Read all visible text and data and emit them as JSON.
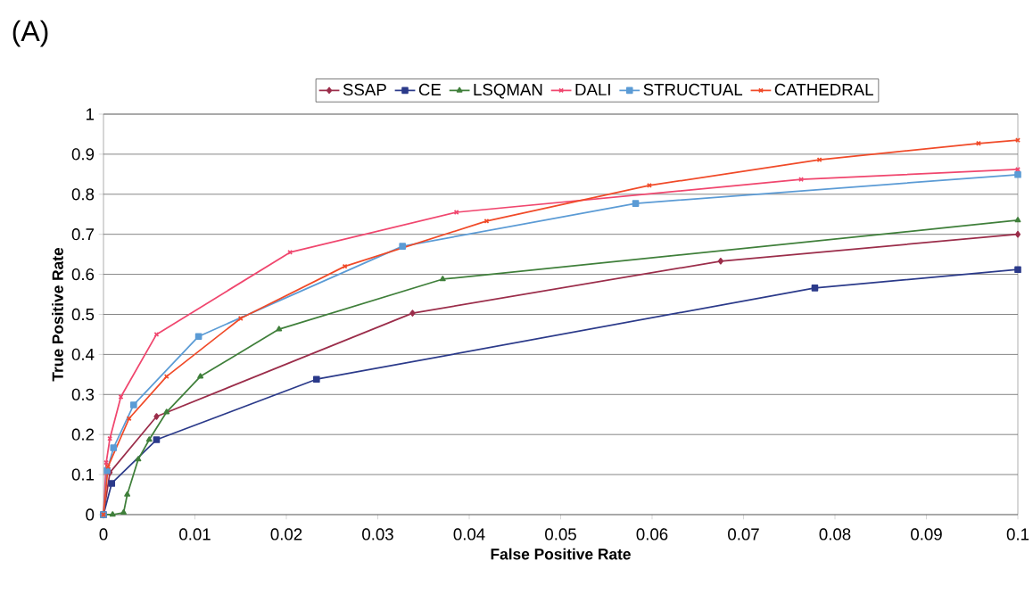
{
  "chart_data": {
    "type": "line",
    "xlabel": "False Positive Rate",
    "ylabel": "True Positive Rate",
    "annotations": [
      "(A)"
    ],
    "xlim": [
      0,
      0.1
    ],
    "xticks": [
      0,
      0.01,
      0.02,
      0.03,
      0.04,
      0.05,
      0.06,
      0.07,
      0.08,
      0.09,
      0.1
    ],
    "ylim": [
      0,
      1
    ],
    "yticks": [
      0,
      0.1,
      0.2,
      0.3,
      0.4,
      0.5,
      0.6,
      0.7,
      0.8,
      0.9,
      1
    ],
    "grid": "y",
    "legend": "top",
    "line_style": "solid",
    "series": [
      {
        "name": "SSAP",
        "color": "#9b2d4a",
        "marker": "diamond",
        "x": [
          0,
          0.0007,
          0.0058,
          0.0338,
          0.0675,
          0.1
        ],
        "values": [
          0,
          0.105,
          0.245,
          0.503,
          0.633,
          0.7
        ]
      },
      {
        "name": "CE",
        "color": "#2b3a8a",
        "marker": "square",
        "x": [
          0,
          0.0009,
          0.0058,
          0.0233,
          0.0778,
          0.1
        ],
        "values": [
          0,
          0.078,
          0.187,
          0.338,
          0.566,
          0.612
        ]
      },
      {
        "name": "LSQMAN",
        "color": "#3f7f3a",
        "marker": "triangle",
        "x": [
          0,
          0.001,
          0.0022,
          0.0026,
          0.0038,
          0.005,
          0.0069,
          0.0106,
          0.0192,
          0.0371,
          0.1
        ],
        "values": [
          0,
          0,
          0.005,
          0.05,
          0.138,
          0.187,
          0.256,
          0.345,
          0.463,
          0.588,
          0.735
        ]
      },
      {
        "name": "DALI",
        "color": "#f0466e",
        "marker": "cross",
        "x": [
          0,
          0.0003,
          0.0007,
          0.0019,
          0.0058,
          0.0204,
          0.0386,
          0.0763,
          0.1
        ],
        "values": [
          0,
          0.13,
          0.19,
          0.294,
          0.45,
          0.655,
          0.755,
          0.837,
          0.862
        ]
      },
      {
        "name": "STRUCTUAL",
        "color": "#5b9bd5",
        "marker": "square",
        "x": [
          0,
          0.0004,
          0.0011,
          0.0033,
          0.0104,
          0.0327,
          0.0582,
          0.1
        ],
        "values": [
          0,
          0.11,
          0.167,
          0.274,
          0.445,
          0.67,
          0.777,
          0.849
        ]
      },
      {
        "name": "CATHEDRAL",
        "color": "#f04a28",
        "marker": "cross",
        "x": [
          0,
          0.0005,
          0.0028,
          0.0069,
          0.015,
          0.0264,
          0.0419,
          0.0597,
          0.0783,
          0.0957,
          0.1
        ],
        "values": [
          0,
          0.12,
          0.24,
          0.345,
          0.49,
          0.62,
          0.733,
          0.822,
          0.886,
          0.927,
          0.935
        ]
      }
    ]
  }
}
